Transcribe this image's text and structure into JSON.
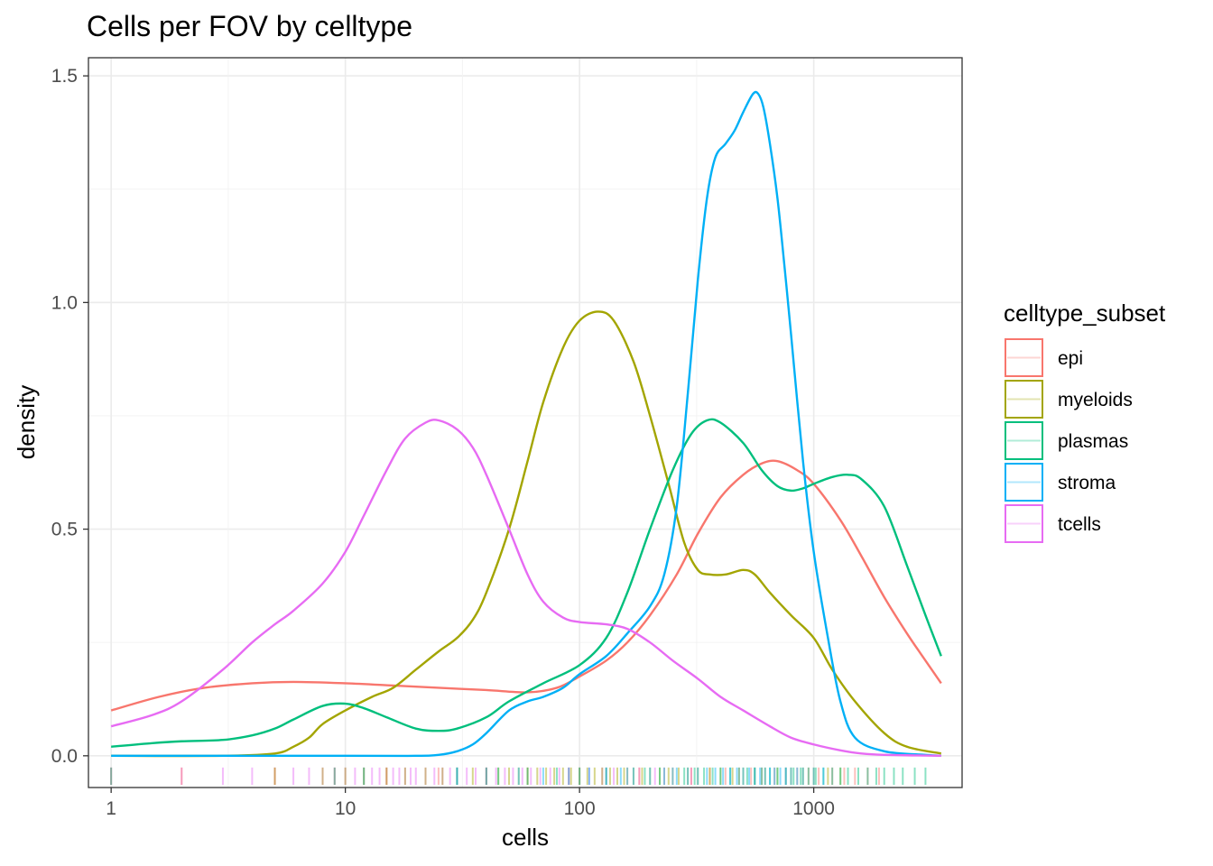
{
  "chart_data": {
    "type": "line",
    "subtype": "density with rug",
    "title": "Cells per FOV by celltype",
    "xlabel": "cells",
    "ylabel": "density",
    "x_scale": "log10",
    "xlim": [
      0.8,
      4300
    ],
    "ylim": [
      -0.07,
      1.54
    ],
    "x_ticks": [
      1,
      10,
      100,
      1000
    ],
    "x_tick_labels": [
      "1",
      "10",
      "100",
      "1000"
    ],
    "y_ticks": [
      0,
      0.5,
      1,
      1.5
    ],
    "y_tick_labels": [
      "0.0",
      "0.5",
      "1.0",
      "1.5"
    ],
    "grid": true,
    "legend": {
      "title": "celltype_subset",
      "position": "right"
    },
    "series": [
      {
        "name": "epi",
        "color": "#F8766D",
        "points": [
          [
            1,
            0.1
          ],
          [
            1.6,
            0.13
          ],
          [
            2.5,
            0.15
          ],
          [
            4,
            0.16
          ],
          [
            6,
            0.163
          ],
          [
            10,
            0.16
          ],
          [
            16,
            0.155
          ],
          [
            25,
            0.15
          ],
          [
            40,
            0.145
          ],
          [
            60,
            0.14
          ],
          [
            80,
            0.15
          ],
          [
            100,
            0.175
          ],
          [
            130,
            0.21
          ],
          [
            160,
            0.25
          ],
          [
            200,
            0.31
          ],
          [
            260,
            0.4
          ],
          [
            320,
            0.49
          ],
          [
            400,
            0.57
          ],
          [
            500,
            0.62
          ],
          [
            600,
            0.645
          ],
          [
            700,
            0.65
          ],
          [
            850,
            0.63
          ],
          [
            1000,
            0.6
          ],
          [
            1300,
            0.52
          ],
          [
            1600,
            0.44
          ],
          [
            2000,
            0.35
          ],
          [
            2500,
            0.27
          ],
          [
            3000,
            0.21
          ],
          [
            3500,
            0.16
          ]
        ]
      },
      {
        "name": "myeloids",
        "color": "#A3A500",
        "points": [
          [
            1,
            0.0
          ],
          [
            3,
            0.0
          ],
          [
            5,
            0.005
          ],
          [
            6,
            0.02
          ],
          [
            7,
            0.04
          ],
          [
            8,
            0.07
          ],
          [
            10,
            0.1
          ],
          [
            13,
            0.13
          ],
          [
            16,
            0.15
          ],
          [
            20,
            0.19
          ],
          [
            25,
            0.23
          ],
          [
            30,
            0.26
          ],
          [
            35,
            0.3
          ],
          [
            40,
            0.36
          ],
          [
            50,
            0.5
          ],
          [
            60,
            0.65
          ],
          [
            70,
            0.78
          ],
          [
            85,
            0.9
          ],
          [
            100,
            0.96
          ],
          [
            120,
            0.98
          ],
          [
            140,
            0.96
          ],
          [
            170,
            0.87
          ],
          [
            200,
            0.75
          ],
          [
            240,
            0.6
          ],
          [
            280,
            0.47
          ],
          [
            320,
            0.41
          ],
          [
            360,
            0.4
          ],
          [
            420,
            0.4
          ],
          [
            500,
            0.41
          ],
          [
            560,
            0.4
          ],
          [
            650,
            0.36
          ],
          [
            800,
            0.31
          ],
          [
            1000,
            0.26
          ],
          [
            1200,
            0.19
          ],
          [
            1500,
            0.12
          ],
          [
            2000,
            0.05
          ],
          [
            2500,
            0.02
          ],
          [
            3500,
            0.005
          ]
        ]
      },
      {
        "name": "plasmas",
        "color": "#00BF7D",
        "points": [
          [
            1,
            0.02
          ],
          [
            1.5,
            0.028
          ],
          [
            2,
            0.032
          ],
          [
            3,
            0.035
          ],
          [
            4,
            0.045
          ],
          [
            5,
            0.06
          ],
          [
            6,
            0.08
          ],
          [
            8,
            0.11
          ],
          [
            10,
            0.115
          ],
          [
            12,
            0.105
          ],
          [
            15,
            0.085
          ],
          [
            20,
            0.06
          ],
          [
            25,
            0.055
          ],
          [
            30,
            0.06
          ],
          [
            40,
            0.085
          ],
          [
            50,
            0.12
          ],
          [
            70,
            0.16
          ],
          [
            100,
            0.2
          ],
          [
            130,
            0.26
          ],
          [
            160,
            0.36
          ],
          [
            200,
            0.5
          ],
          [
            250,
            0.63
          ],
          [
            300,
            0.71
          ],
          [
            350,
            0.74
          ],
          [
            400,
            0.735
          ],
          [
            500,
            0.69
          ],
          [
            600,
            0.63
          ],
          [
            700,
            0.595
          ],
          [
            800,
            0.585
          ],
          [
            900,
            0.59
          ],
          [
            1000,
            0.6
          ],
          [
            1200,
            0.615
          ],
          [
            1400,
            0.62
          ],
          [
            1600,
            0.61
          ],
          [
            2000,
            0.55
          ],
          [
            2500,
            0.42
          ],
          [
            3000,
            0.31
          ],
          [
            3500,
            0.22
          ]
        ]
      },
      {
        "name": "stroma",
        "color": "#00B0F6",
        "points": [
          [
            1,
            0.0
          ],
          [
            10,
            0.0
          ],
          [
            20,
            0.0
          ],
          [
            25,
            0.002
          ],
          [
            30,
            0.01
          ],
          [
            35,
            0.025
          ],
          [
            40,
            0.05
          ],
          [
            50,
            0.1
          ],
          [
            60,
            0.12
          ],
          [
            70,
            0.13
          ],
          [
            85,
            0.15
          ],
          [
            100,
            0.18
          ],
          [
            130,
            0.22
          ],
          [
            160,
            0.27
          ],
          [
            200,
            0.33
          ],
          [
            230,
            0.4
          ],
          [
            260,
            0.55
          ],
          [
            290,
            0.8
          ],
          [
            320,
            1.05
          ],
          [
            350,
            1.23
          ],
          [
            380,
            1.32
          ],
          [
            420,
            1.35
          ],
          [
            460,
            1.38
          ],
          [
            500,
            1.42
          ],
          [
            550,
            1.46
          ],
          [
            580,
            1.46
          ],
          [
            610,
            1.43
          ],
          [
            650,
            1.35
          ],
          [
            700,
            1.23
          ],
          [
            750,
            1.08
          ],
          [
            800,
            0.93
          ],
          [
            900,
            0.65
          ],
          [
            1000,
            0.45
          ],
          [
            1150,
            0.26
          ],
          [
            1300,
            0.12
          ],
          [
            1500,
            0.04
          ],
          [
            2000,
            0.01
          ],
          [
            3000,
            0.002
          ],
          [
            3500,
            0.0
          ]
        ]
      },
      {
        "name": "tcells",
        "color": "#E76BF3",
        "points": [
          [
            1,
            0.065
          ],
          [
            1.5,
            0.09
          ],
          [
            2,
            0.12
          ],
          [
            3,
            0.19
          ],
          [
            4,
            0.25
          ],
          [
            5,
            0.29
          ],
          [
            6,
            0.32
          ],
          [
            8,
            0.38
          ],
          [
            10,
            0.45
          ],
          [
            12,
            0.53
          ],
          [
            15,
            0.63
          ],
          [
            18,
            0.7
          ],
          [
            22,
            0.735
          ],
          [
            25,
            0.74
          ],
          [
            30,
            0.72
          ],
          [
            35,
            0.68
          ],
          [
            40,
            0.62
          ],
          [
            50,
            0.5
          ],
          [
            60,
            0.4
          ],
          [
            70,
            0.34
          ],
          [
            85,
            0.305
          ],
          [
            100,
            0.295
          ],
          [
            130,
            0.29
          ],
          [
            160,
            0.28
          ],
          [
            200,
            0.25
          ],
          [
            250,
            0.21
          ],
          [
            320,
            0.17
          ],
          [
            400,
            0.13
          ],
          [
            500,
            0.1
          ],
          [
            650,
            0.065
          ],
          [
            800,
            0.04
          ],
          [
            1000,
            0.025
          ],
          [
            1300,
            0.012
          ],
          [
            1600,
            0.005
          ],
          [
            2000,
            0.002
          ],
          [
            3500,
            0.0
          ]
        ]
      }
    ],
    "rug": [
      {
        "name": "tcells",
        "color": "#E76BF3",
        "values": [
          1,
          2,
          3,
          4,
          5,
          6,
          7,
          8,
          9,
          10,
          11,
          12,
          13,
          14,
          15,
          16,
          17,
          18,
          19,
          20,
          22,
          24,
          26,
          28,
          30,
          33,
          36,
          40,
          44,
          48,
          52,
          57,
          62,
          68,
          75,
          82,
          90,
          100,
          110,
          125,
          140,
          160,
          180,
          210,
          250,
          300
        ]
      },
      {
        "name": "epi",
        "color": "#F8766D",
        "values": [
          1,
          2,
          5,
          9,
          15,
          25,
          40,
          60,
          90,
          130,
          180,
          230,
          300,
          360,
          420,
          480,
          540,
          600,
          680,
          760,
          850,
          950,
          1050,
          1200,
          1350,
          1500,
          1700,
          1900
        ]
      },
      {
        "name": "myeloids",
        "color": "#A3A500",
        "values": [
          5,
          8,
          10,
          12,
          15,
          18,
          22,
          26,
          30,
          35,
          40,
          45,
          50,
          55,
          60,
          66,
          72,
          78,
          85,
          92,
          100,
          108,
          116,
          125,
          135,
          145,
          155,
          170,
          185,
          200,
          220,
          240,
          265,
          290,
          320,
          360,
          400,
          450,
          500,
          560,
          620,
          700,
          800,
          900,
          1000,
          1150,
          1300
        ]
      },
      {
        "name": "plasmas",
        "color": "#00BF7D",
        "values": [
          1,
          9,
          12,
          30,
          45,
          60,
          80,
          100,
          130,
          160,
          190,
          220,
          250,
          280,
          310,
          340,
          370,
          400,
          440,
          480,
          520,
          560,
          600,
          650,
          700,
          760,
          820,
          880,
          950,
          1020,
          1100,
          1200,
          1300,
          1400,
          1550,
          1700,
          1850,
          2000,
          2200,
          2400,
          2700,
          3000
        ]
      },
      {
        "name": "stroma",
        "color": "#00B0F6",
        "values": [
          30,
          40,
          55,
          70,
          90,
          110,
          130,
          150,
          170,
          200,
          230,
          260,
          290,
          320,
          350,
          380,
          410,
          440,
          470,
          500,
          530,
          560,
          590,
          620,
          650,
          680,
          720,
          760,
          800,
          850,
          900,
          1000,
          1100
        ]
      }
    ]
  }
}
